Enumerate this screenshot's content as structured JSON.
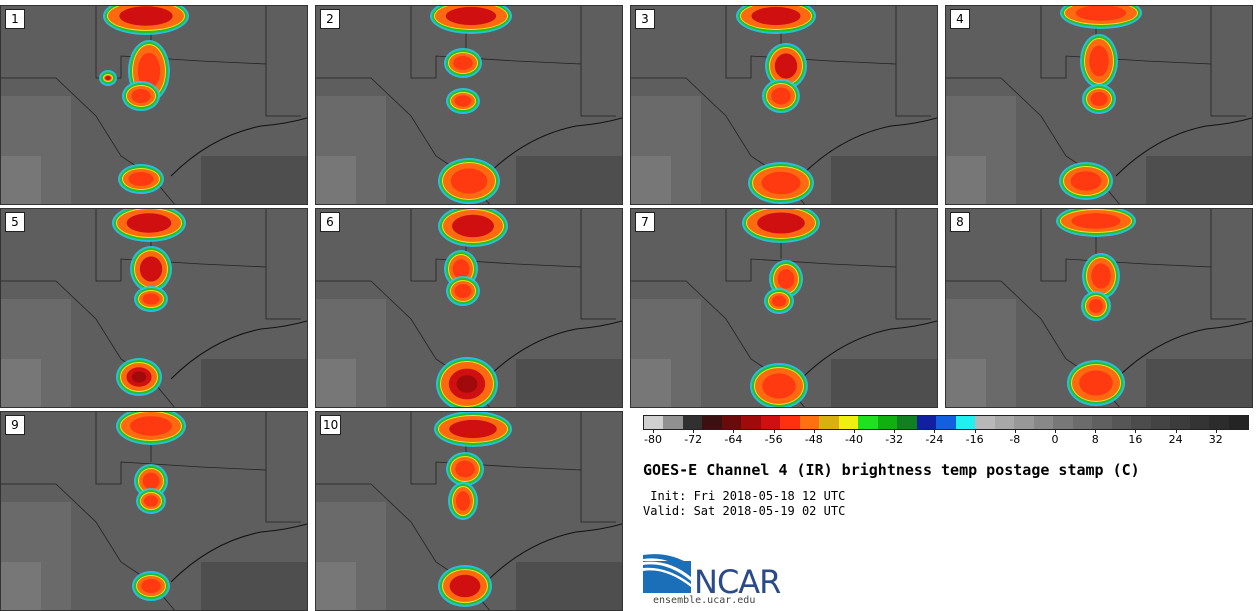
{
  "panels": [
    {
      "label": "1"
    },
    {
      "label": "2"
    },
    {
      "label": "3"
    },
    {
      "label": "4"
    },
    {
      "label": "5"
    },
    {
      "label": "6"
    },
    {
      "label": "7"
    },
    {
      "label": "8"
    },
    {
      "label": "9"
    },
    {
      "label": "10"
    }
  ],
  "colorbar": {
    "tick_labels": [
      "-80",
      "-72",
      "-64",
      "-56",
      "-48",
      "-40",
      "-32",
      "-24",
      "-16",
      "-8",
      "0",
      "8",
      "16",
      "24",
      "32"
    ],
    "colors": [
      "#d0d0d0",
      "#909090",
      "#303030",
      "#3a1010",
      "#6a0a0a",
      "#a00a0a",
      "#d01010",
      "#ff3010",
      "#ff7010",
      "#d8b010",
      "#f0f010",
      "#20e020",
      "#10b010",
      "#108020",
      "#1020a0",
      "#1060e0",
      "#20f0f0",
      "#b8b8b8",
      "#a8a8a8",
      "#989898",
      "#888888",
      "#787878",
      "#6c6c6c",
      "#606060",
      "#565656",
      "#4c4c4c",
      "#444444",
      "#3c3c3c",
      "#343434",
      "#2c2c2c",
      "#242424"
    ]
  },
  "title": "GOES-E Channel 4 (IR) brightness temp postage stamp (C)",
  "init": " Init: Fri 2018-05-18 12 UTC",
  "valid": "Valid: Sat 2018-05-19 02 UTC",
  "logo": {
    "text": "NCAR"
  },
  "url": "ensemble.ucar.edu"
}
